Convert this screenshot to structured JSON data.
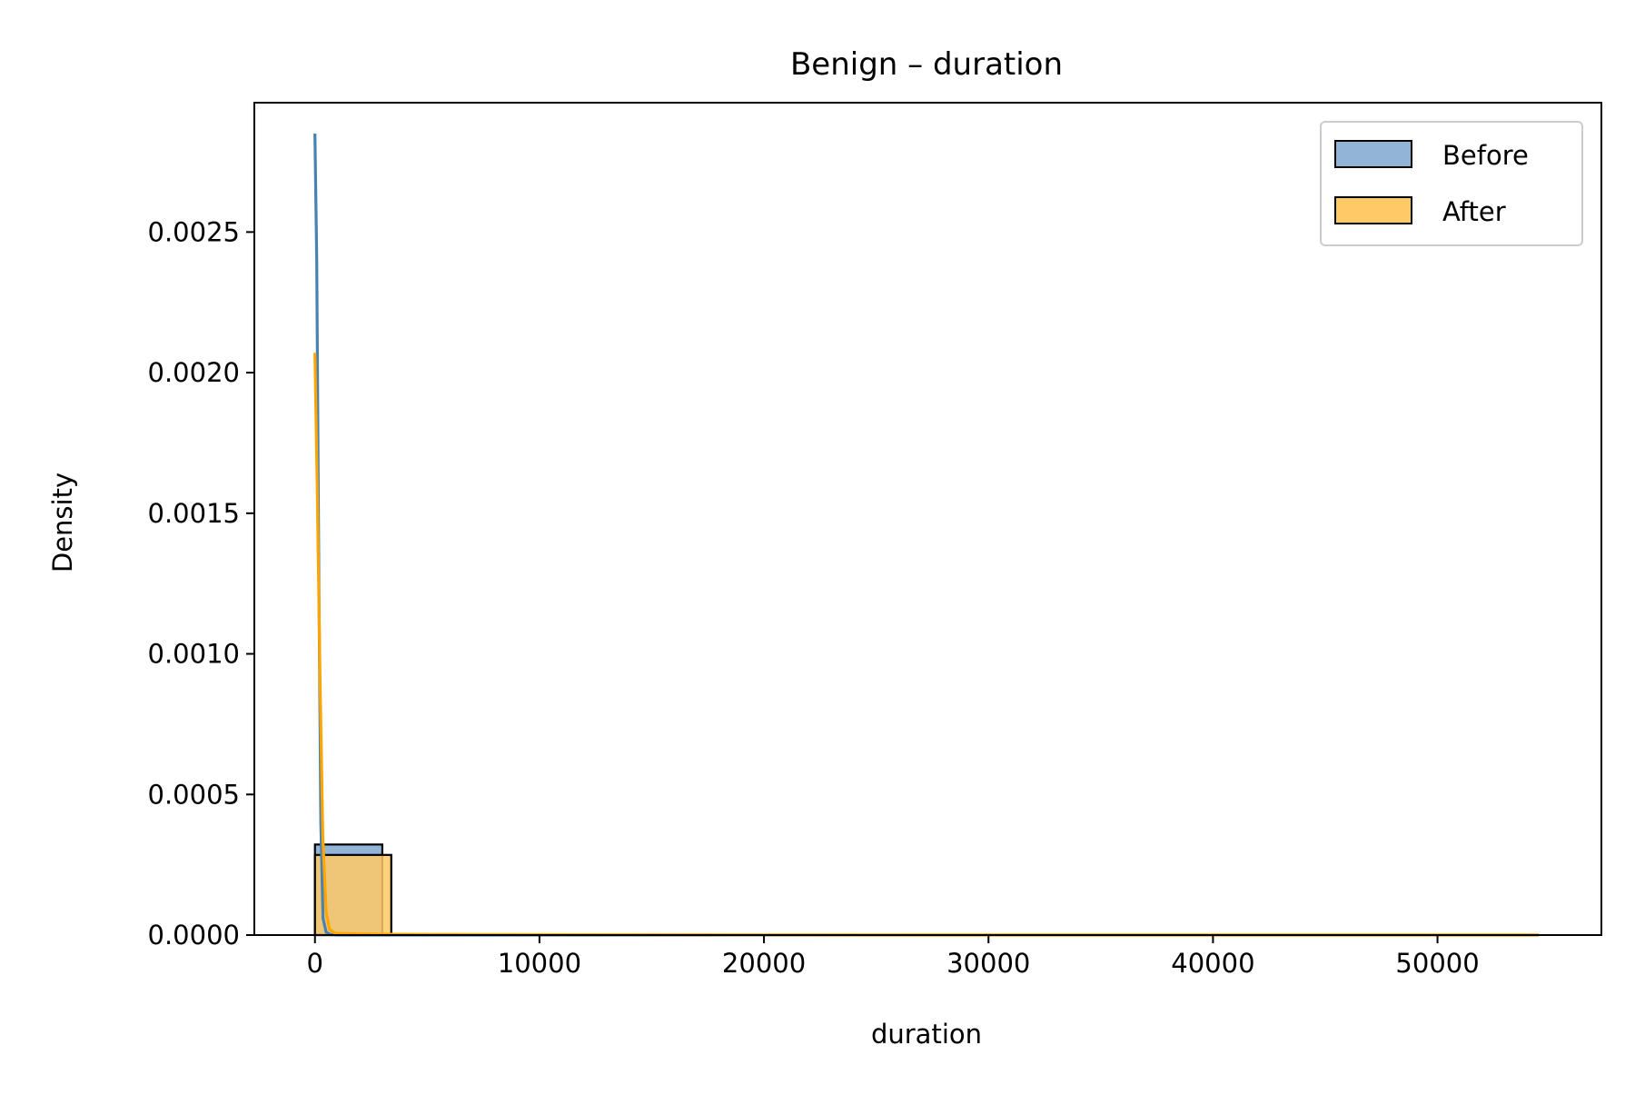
{
  "chart_data": {
    "type": "histogram",
    "title": "Benign – duration",
    "xlabel": "duration",
    "ylabel": "Density",
    "xlim": [
      -2700,
      57300
    ],
    "ylim": [
      0,
      0.00296
    ],
    "xticks": [
      0,
      10000,
      20000,
      30000,
      40000,
      50000
    ],
    "xtick_labels": [
      "0",
      "10000",
      "20000",
      "30000",
      "40000",
      "50000"
    ],
    "yticks": [
      0,
      0.0005,
      0.001,
      0.0015,
      0.002,
      0.0025
    ],
    "ytick_labels": [
      "0.0000",
      "0.0005",
      "0.0010",
      "0.0015",
      "0.0020",
      "0.0025"
    ],
    "grid": false,
    "legend_position": "top-right",
    "series": [
      {
        "name": "Before",
        "fill": "#92b4d6",
        "line_color": "#4682b4",
        "bins": [
          {
            "x0": 0,
            "x1": 3000,
            "density": 0.000322
          }
        ],
        "kde": [
          [
            0,
            0.00285
          ],
          [
            80,
            0.0024
          ],
          [
            180,
            0.0012
          ],
          [
            260,
            0.0004
          ],
          [
            360,
            6e-05
          ],
          [
            500,
            1e-05
          ],
          [
            700,
            2e-06
          ],
          [
            1000,
            0.0
          ],
          [
            5000,
            0.0
          ],
          [
            20000,
            0.0
          ],
          [
            40000,
            0.0
          ],
          [
            54500,
            0.0
          ]
        ]
      },
      {
        "name": "After",
        "fill": "#ffc966",
        "line_color": "#ffa500",
        "bins": [
          {
            "x0": 0,
            "x1": 3400,
            "density": 0.000285
          }
        ],
        "kde": [
          [
            0,
            0.00207
          ],
          [
            100,
            0.0016
          ],
          [
            230,
            0.0009
          ],
          [
            350,
            0.00035
          ],
          [
            500,
            8e-05
          ],
          [
            650,
            2e-05
          ],
          [
            900,
            6e-06
          ],
          [
            3000,
            3e-06
          ],
          [
            10000,
            1.5e-06
          ],
          [
            20000,
            8e-07
          ],
          [
            35000,
            4e-07
          ],
          [
            54500,
            2e-07
          ]
        ]
      }
    ]
  }
}
